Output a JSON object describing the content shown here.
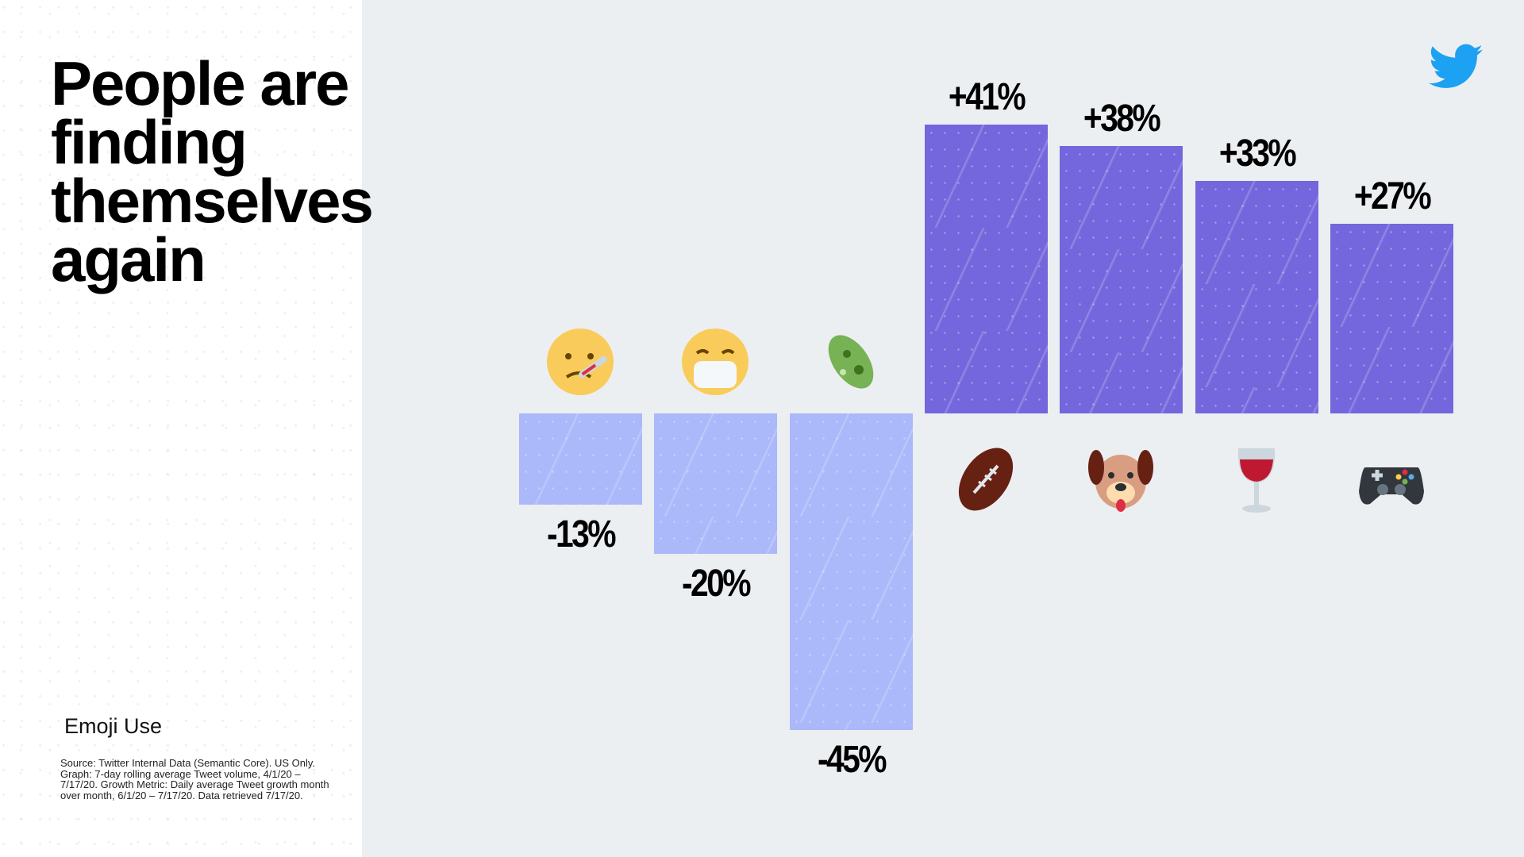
{
  "title_lines": [
    "People are",
    "finding",
    "themselves",
    "again"
  ],
  "subtitle": "Emoji Use",
  "source": "Source: Twitter Internal Data (Semantic Core). US Only. Graph: 7-day rolling average Tweet volume, 4/1/20 – 7/17/20. Growth Metric: Daily average Tweet growth month over month, 6/1/20 – 7/17/20. Data retrieved 7/17/20.",
  "logo": "twitter-bird-icon",
  "colors": {
    "positive": "#7466dc",
    "negative": "#abb8fa",
    "brand": "#1da1f2",
    "background": "#eceff2"
  },
  "chart_data": {
    "type": "bar",
    "title": "People are finding themselves again",
    "categories": [
      "face-with-thermometer",
      "face-with-medical-mask",
      "microbe",
      "american-football",
      "dog-face",
      "wine-glass",
      "video-game"
    ],
    "values": [
      -13,
      -20,
      -45,
      41,
      38,
      33,
      27
    ],
    "labels": [
      "-13%",
      "-20%",
      "-45%",
      "+41%",
      "+38%",
      "+33%",
      "+27%"
    ],
    "unit": "%",
    "ylim": [
      -45,
      41
    ],
    "grid": false
  }
}
